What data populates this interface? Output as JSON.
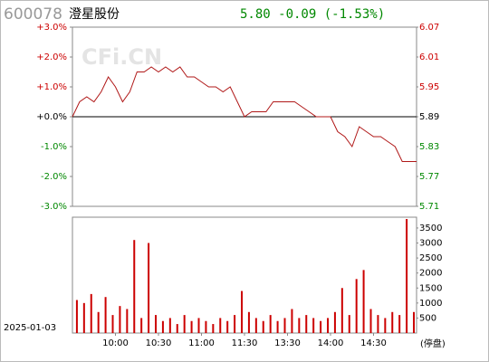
{
  "header": {
    "code": "600078",
    "name": "澄星股份",
    "quote": "5.80 -0.09 (-1.53%)"
  },
  "watermark": "CFi.CN",
  "date": "2025-01-03",
  "chart_data": [
    {
      "type": "line",
      "x": [
        0,
        5,
        10,
        15,
        20,
        25,
        30,
        35,
        40,
        45,
        50,
        55,
        60,
        65,
        70,
        75,
        80,
        85,
        90,
        95,
        100,
        105,
        110,
        115,
        120,
        125,
        130,
        135,
        140,
        145,
        150,
        155,
        160,
        165,
        170,
        175,
        180,
        185,
        190,
        195,
        200,
        205,
        210,
        215,
        220,
        225,
        230,
        235,
        240
      ],
      "series": [
        {
          "color": "#b01818",
          "values": [
            5.89,
            5.92,
            5.93,
            5.92,
            5.94,
            5.97,
            5.95,
            5.92,
            5.94,
            5.98,
            5.98,
            5.99,
            5.98,
            5.99,
            5.98,
            5.99,
            5.97,
            5.97,
            5.96,
            5.95,
            5.95,
            5.94,
            5.95,
            5.92,
            5.89,
            5.9,
            5.9,
            5.9,
            5.92,
            5.92,
            5.92,
            5.92,
            5.91,
            5.9,
            5.89,
            5.89,
            5.89,
            5.86,
            5.85,
            5.83,
            5.87,
            5.86,
            5.85,
            5.85,
            5.84,
            5.83,
            5.8,
            5.8,
            5.8
          ]
        }
      ],
      "xlim": [
        0,
        240
      ],
      "ylim": [
        5.71,
        6.07
      ],
      "yticks": [
        6.07,
        6.01,
        5.95,
        5.89,
        5.83,
        5.77,
        5.71
      ],
      "y2lim": [
        -3,
        3
      ],
      "y2ticks": [
        {
          "value": 3,
          "label": "+3.0%"
        },
        {
          "value": 2,
          "label": "+2.0%"
        },
        {
          "value": 1,
          "label": "+1.0%"
        },
        {
          "value": 0,
          "label": "+0.0%"
        },
        {
          "value": -1,
          "label": "-1.0%"
        },
        {
          "value": -2,
          "label": "-2.0%"
        },
        {
          "value": -3,
          "label": "-3.0%"
        }
      ],
      "up_color": "#cc0000",
      "down_color": "#008800",
      "flat_color": "#000000"
    },
    {
      "type": "bar",
      "x": [
        5,
        10,
        15,
        20,
        25,
        30,
        35,
        40,
        45,
        50,
        55,
        60,
        65,
        70,
        75,
        80,
        85,
        90,
        95,
        100,
        105,
        110,
        115,
        120,
        125,
        130,
        135,
        140,
        145,
        150,
        155,
        160,
        165,
        170,
        175,
        180,
        185,
        190,
        195,
        200,
        205,
        210,
        215,
        220,
        225,
        230,
        235,
        240
      ],
      "values": [
        1100,
        1000,
        1300,
        700,
        1200,
        600,
        900,
        800,
        3100,
        500,
        3000,
        600,
        400,
        500,
        300,
        600,
        400,
        500,
        400,
        300,
        500,
        400,
        600,
        1400,
        700,
        500,
        400,
        600,
        400,
        500,
        800,
        500,
        600,
        500,
        400,
        500,
        700,
        1500,
        600,
        1800,
        2100,
        800,
        600,
        500,
        700,
        600,
        3800,
        700
      ],
      "color": "#cc0000",
      "xlim": [
        0,
        240
      ],
      "ylim": [
        0,
        3860
      ],
      "yticks": [
        500,
        1000,
        1500,
        2000,
        2500,
        3000,
        3500
      ],
      "xticks": [
        {
          "value": 30,
          "label": "10:00"
        },
        {
          "value": 60,
          "label": "10:30"
        },
        {
          "value": 90,
          "label": "11:00"
        },
        {
          "value": 120,
          "label": "11:30"
        },
        {
          "value": 150,
          "label": "13:30"
        },
        {
          "value": 180,
          "label": "14:00"
        },
        {
          "value": 210,
          "label": "14:30"
        }
      ],
      "x_end_label": "(停盘)"
    }
  ]
}
